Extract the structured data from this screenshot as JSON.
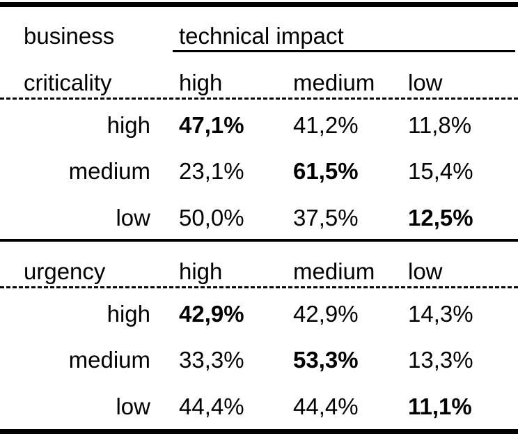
{
  "header": {
    "row_label_line1": "business",
    "row_label_line2": "criticality",
    "group_label": "technical impact",
    "columns": [
      "high",
      "medium",
      "low"
    ]
  },
  "section_criticality": {
    "rows": [
      {
        "label": "high",
        "values": [
          "47,1%",
          "41,2%",
          "11,8%"
        ],
        "bold_index": 0
      },
      {
        "label": "medium",
        "values": [
          "23,1%",
          "61,5%",
          "15,4%"
        ],
        "bold_index": 1
      },
      {
        "label": "low",
        "values": [
          "50,0%",
          "37,5%",
          "12,5%"
        ],
        "bold_index": 2
      }
    ]
  },
  "section_urgency": {
    "label": "urgency",
    "columns": [
      "high",
      "medium",
      "low"
    ],
    "rows": [
      {
        "label": "high",
        "values": [
          "42,9%",
          "42,9%",
          "14,3%"
        ],
        "bold_index": 0
      },
      {
        "label": "medium",
        "values": [
          "33,3%",
          "53,3%",
          "13,3%"
        ],
        "bold_index": 1
      },
      {
        "label": "low",
        "values": [
          "44,4%",
          "44,4%",
          "11,1%"
        ],
        "bold_index": 2
      }
    ]
  }
}
